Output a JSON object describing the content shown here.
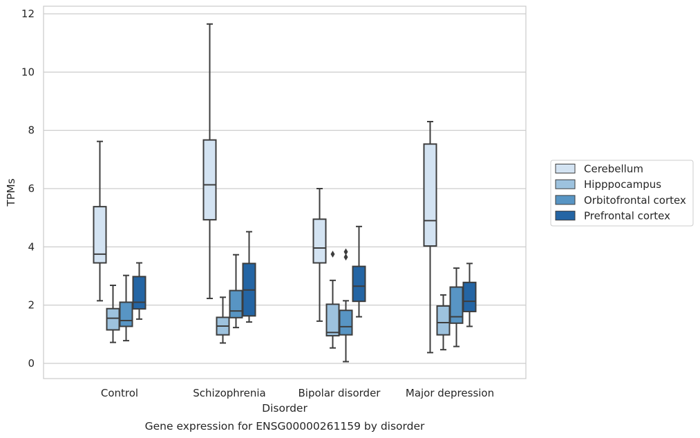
{
  "chart_data": {
    "type": "box",
    "title": "Gene expression for ENSG00000261159 by disorder",
    "xlabel": "Disorder",
    "ylabel": "TPMs",
    "ylim": [
      -0.5,
      12.25
    ],
    "yticks": [
      0,
      2,
      4,
      6,
      8,
      10,
      12
    ],
    "grid": "horizontal",
    "legend_position": "right",
    "categories": [
      "Control",
      "Schizophrenia",
      "Bipolar disorder",
      "Major depression"
    ],
    "series": [
      {
        "name": "Cerebellum",
        "color": "#d3e3f2",
        "boxes": [
          {
            "whisker_low": 2.15,
            "q1": 3.45,
            "median": 3.75,
            "q3": 5.38,
            "whisker_high": 7.62,
            "outliers": []
          },
          {
            "whisker_low": 2.23,
            "q1": 4.93,
            "median": 6.13,
            "q3": 7.67,
            "whisker_high": 11.65,
            "outliers": []
          },
          {
            "whisker_low": 1.45,
            "q1": 3.45,
            "median": 3.96,
            "q3": 4.95,
            "whisker_high": 6.0,
            "outliers": []
          },
          {
            "whisker_low": 0.37,
            "q1": 4.03,
            "median": 4.9,
            "q3": 7.53,
            "whisker_high": 8.3,
            "outliers": []
          }
        ]
      },
      {
        "name": "Hipppocampus",
        "color": "#9dc2de",
        "boxes": [
          {
            "whisker_low": 0.72,
            "q1": 1.15,
            "median": 1.55,
            "q3": 1.88,
            "whisker_high": 2.68,
            "outliers": []
          },
          {
            "whisker_low": 0.7,
            "q1": 0.98,
            "median": 1.28,
            "q3": 1.58,
            "whisker_high": 2.27,
            "outliers": []
          },
          {
            "whisker_low": 0.53,
            "q1": 0.95,
            "median": 1.06,
            "q3": 2.03,
            "whisker_high": 2.85,
            "outliers": [
              3.75
            ]
          },
          {
            "whisker_low": 0.47,
            "q1": 0.98,
            "median": 1.4,
            "q3": 1.97,
            "whisker_high": 2.35,
            "outliers": []
          }
        ]
      },
      {
        "name": "Orbitofrontal cortex",
        "color": "#5895c4",
        "boxes": [
          {
            "whisker_low": 0.78,
            "q1": 1.27,
            "median": 1.47,
            "q3": 2.1,
            "whisker_high": 3.02,
            "outliers": []
          },
          {
            "whisker_low": 1.23,
            "q1": 1.57,
            "median": 1.8,
            "q3": 2.5,
            "whisker_high": 3.73,
            "outliers": []
          },
          {
            "whisker_low": 0.06,
            "q1": 0.98,
            "median": 1.26,
            "q3": 1.82,
            "whisker_high": 2.15,
            "outliers": [
              3.65,
              3.83
            ]
          },
          {
            "whisker_low": 0.58,
            "q1": 1.38,
            "median": 1.6,
            "q3": 2.62,
            "whisker_high": 3.27,
            "outliers": []
          }
        ]
      },
      {
        "name": "Prefrontal cortex",
        "color": "#2465a4",
        "boxes": [
          {
            "whisker_low": 1.52,
            "q1": 1.87,
            "median": 2.1,
            "q3": 2.98,
            "whisker_high": 3.45,
            "outliers": []
          },
          {
            "whisker_low": 1.42,
            "q1": 1.63,
            "median": 2.52,
            "q3": 3.43,
            "whisker_high": 4.52,
            "outliers": []
          },
          {
            "whisker_low": 1.6,
            "q1": 2.13,
            "median": 2.65,
            "q3": 3.33,
            "whisker_high": 4.7,
            "outliers": []
          },
          {
            "whisker_low": 1.27,
            "q1": 1.78,
            "median": 2.13,
            "q3": 2.78,
            "whisker_high": 3.43,
            "outliers": []
          }
        ]
      }
    ]
  }
}
